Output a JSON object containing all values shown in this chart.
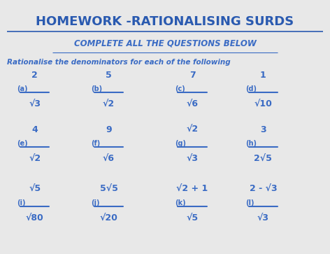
{
  "title": "HOMEWORK -RATIONALISING SURDS",
  "subtitle": "COMPLETE ALL THE QUESTIONS BELOW",
  "instruction": "Rationalise the denominators for each of the following",
  "bg_color": "#e8e8e8",
  "text_color": "#3a6bc4",
  "title_color": "#2a5ab0",
  "questions": [
    {
      "label": "(a)",
      "num": "2",
      "den": "√3",
      "col": 0,
      "row": 0
    },
    {
      "label": "(b)",
      "num": "5",
      "den": "√2",
      "col": 1,
      "row": 0
    },
    {
      "label": "(c)",
      "num": "7",
      "den": "√6",
      "col": 2,
      "row": 0
    },
    {
      "label": "(d)",
      "num": "1",
      "den": "√10",
      "col": 3,
      "row": 0
    },
    {
      "label": "(e)",
      "num": "4",
      "den": "√2",
      "col": 0,
      "row": 1
    },
    {
      "label": "(f)",
      "num": "9",
      "den": "√6",
      "col": 1,
      "row": 1
    },
    {
      "label": "(g)",
      "num": "√2",
      "den": "√3",
      "col": 2,
      "row": 1
    },
    {
      "label": "(h)",
      "num": "3",
      "den": "2√5",
      "col": 3,
      "row": 1
    },
    {
      "label": "(i)",
      "num": "√5",
      "den": "√80",
      "col": 0,
      "row": 2
    },
    {
      "label": "(j)",
      "num": "5√5",
      "den": "√20",
      "col": 1,
      "row": 2
    },
    {
      "label": "(k)",
      "num": "√2 + 1",
      "den": "√5",
      "col": 2,
      "row": 2
    },
    {
      "label": "(l)",
      "num": "2 - √3",
      "den": "√3",
      "col": 3,
      "row": 2
    }
  ]
}
